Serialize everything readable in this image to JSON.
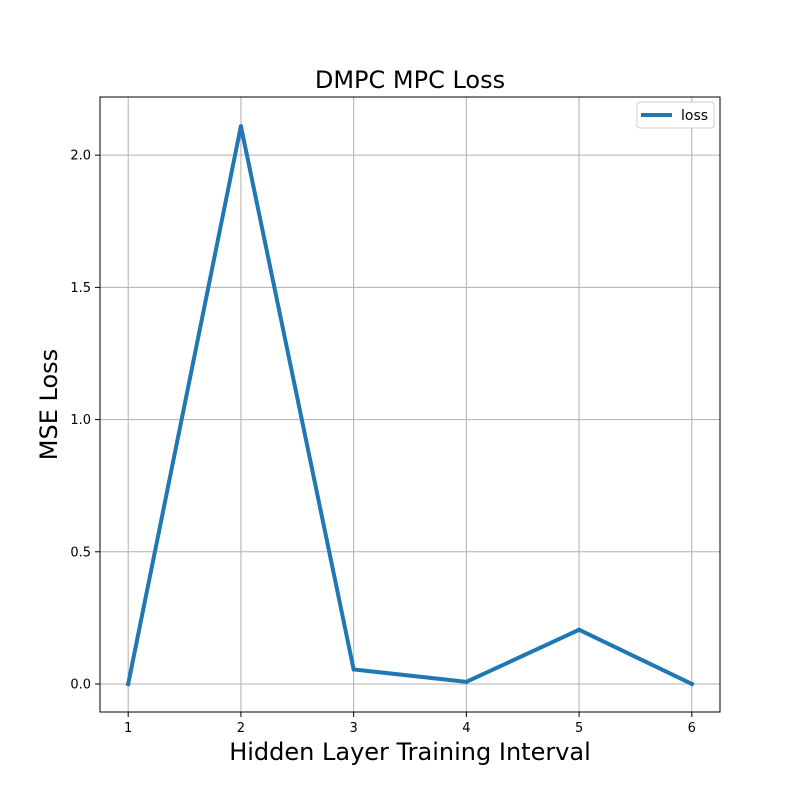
{
  "chart_data": {
    "type": "line",
    "title": "DMPC MPC Loss",
    "xlabel": "Hidden Layer Training Interval",
    "ylabel": "MSE Loss",
    "x": [
      1,
      2,
      3,
      4,
      5,
      6
    ],
    "xticks": [
      1,
      2,
      3,
      4,
      5,
      6
    ],
    "yticks": [
      "0.0",
      "0.5",
      "1.0",
      "1.5",
      "2.0"
    ],
    "xlim": [
      0.75,
      6.25
    ],
    "ylim": [
      -0.106,
      2.22
    ],
    "grid": true,
    "legend_position": "top-right",
    "series": [
      {
        "name": "loss",
        "color": "#1f77b4",
        "values": [
          0.0,
          2.11,
          0.055,
          0.008,
          0.205,
          0.0
        ]
      }
    ]
  }
}
